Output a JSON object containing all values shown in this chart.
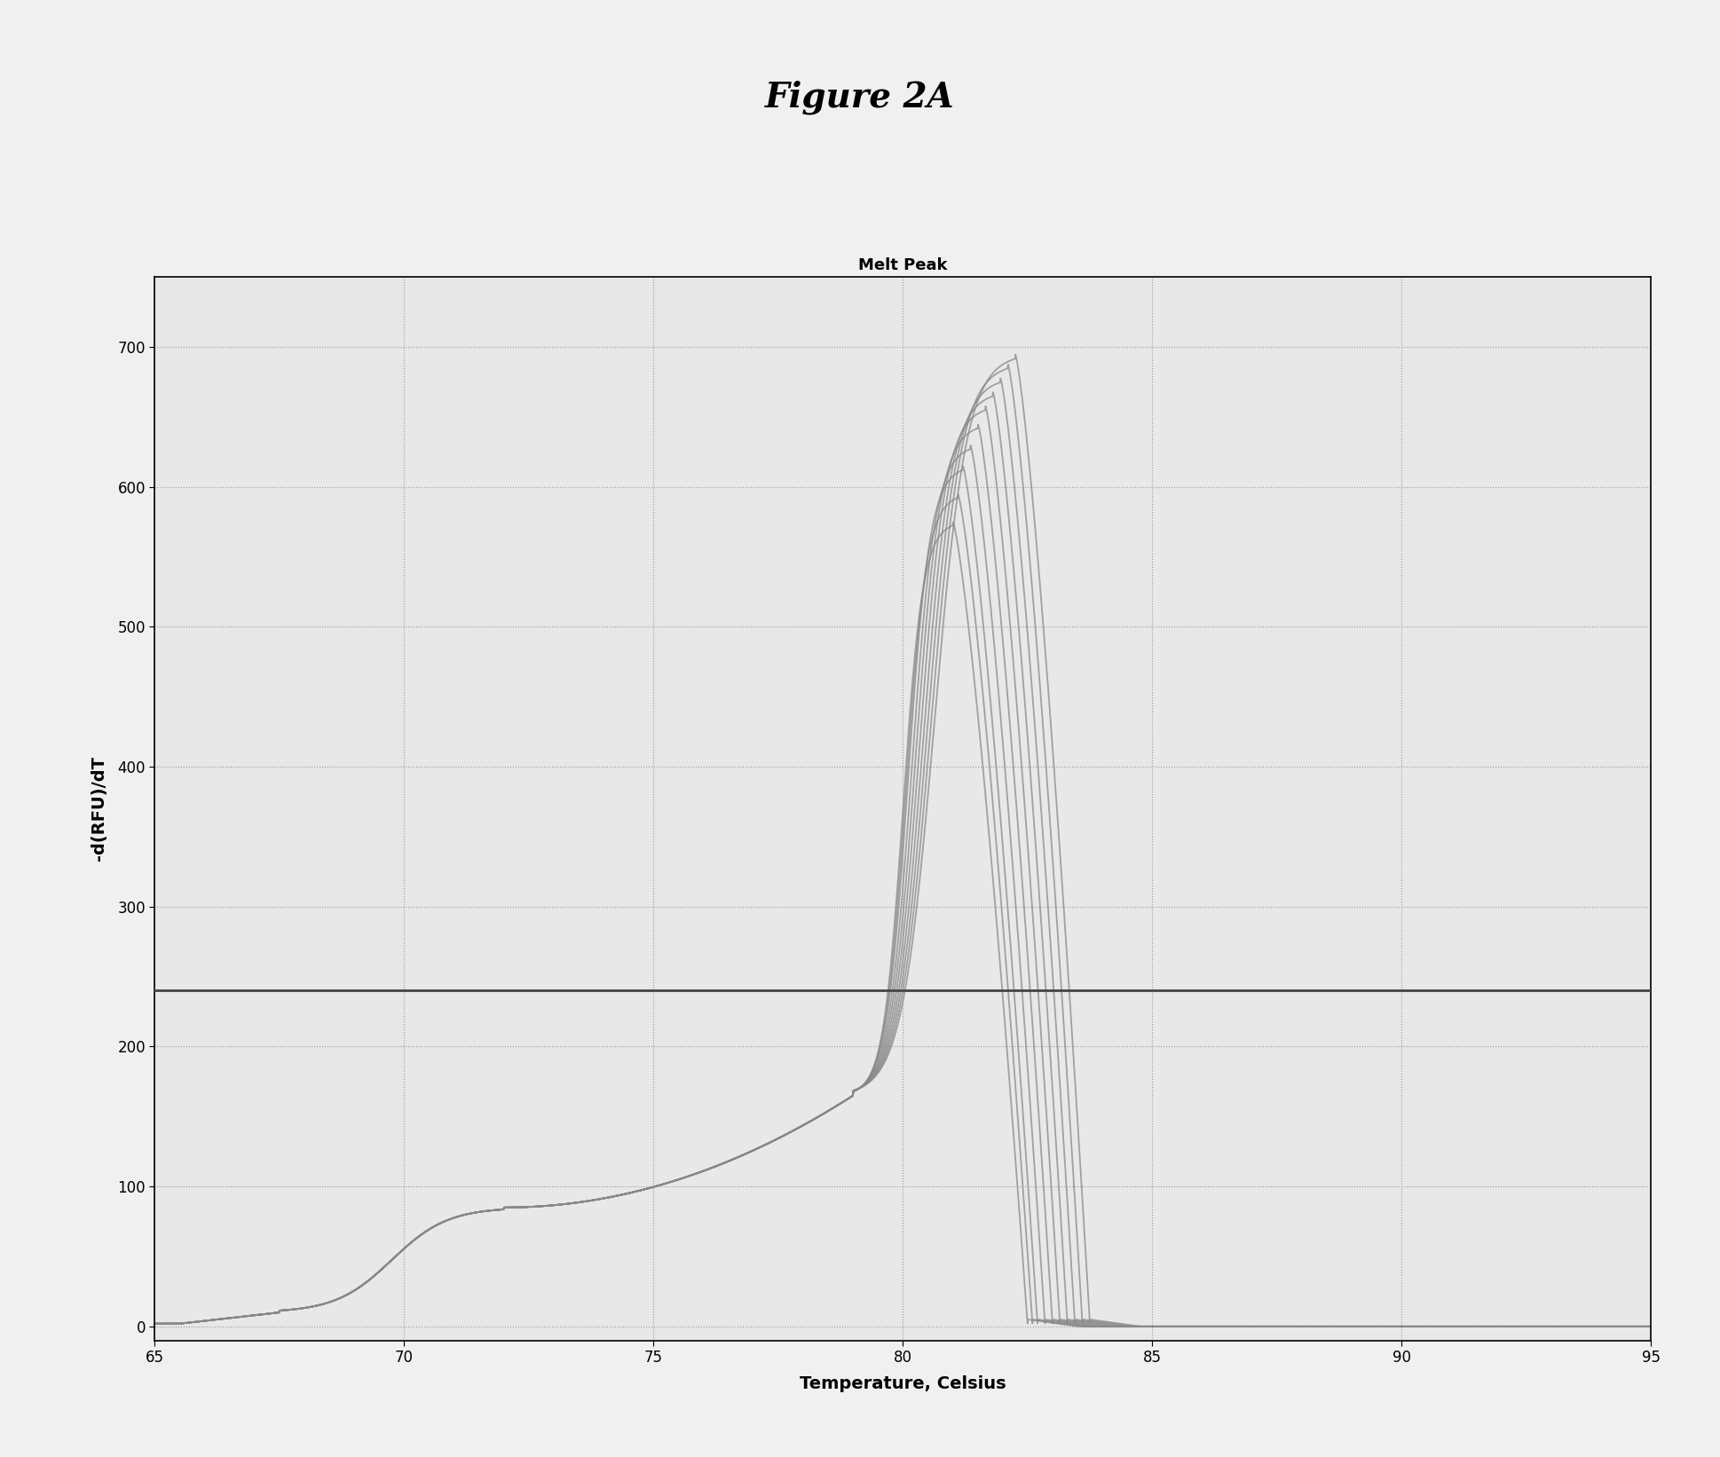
{
  "figure_title": "Figure 2A",
  "chart_title": "Melt Peak",
  "xlabel": "Temperature, Celsius",
  "ylabel": "-d(RFU)/dT",
  "xlim": [
    65,
    95
  ],
  "ylim": [
    -10,
    750
  ],
  "xticks": [
    65,
    70,
    75,
    80,
    85,
    90,
    95
  ],
  "yticks": [
    0,
    100,
    200,
    300,
    400,
    500,
    600,
    700
  ],
  "hline_y": 240,
  "hline_color": "#444444",
  "curve_color": "#888888",
  "background_color": "#f0f0f0",
  "plot_bg_color": "#e8e8e8",
  "figure_title_fontsize": 28,
  "chart_title_fontsize": 13,
  "axis_label_fontsize": 14,
  "tick_fontsize": 12,
  "n_curves": 10,
  "peak_temps": [
    81.0,
    81.1,
    81.2,
    81.35,
    81.5,
    81.65,
    81.8,
    81.95,
    82.1,
    82.25
  ],
  "peak_heights": [
    575,
    595,
    615,
    630,
    645,
    658,
    668,
    678,
    688,
    695
  ]
}
